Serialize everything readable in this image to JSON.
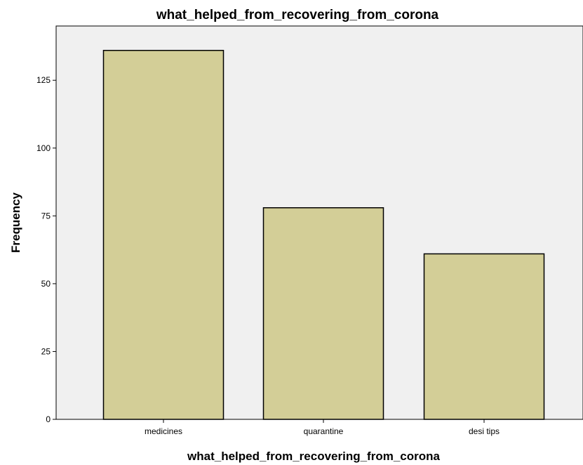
{
  "chart_data": {
    "type": "bar",
    "title": "what_helped_from_recovering_from_corona",
    "xlabel": "what_helped_from_recovering_from_corona",
    "ylabel": "Frequency",
    "categories": [
      "medicines",
      "quarantine",
      "desi tips"
    ],
    "values": [
      136,
      78,
      61
    ],
    "ylim": [
      0,
      145
    ],
    "yticks": [
      0,
      25,
      50,
      75,
      100,
      125
    ],
    "ytick_labels": [
      "0",
      "25",
      "50",
      "75",
      "100",
      "125"
    ],
    "grid": false,
    "legend": "none",
    "colors": {
      "bar_fill": "#d3ce97",
      "bar_stroke": "#000000",
      "plot_background": "#f0f0f0",
      "axis": "#000000"
    }
  }
}
